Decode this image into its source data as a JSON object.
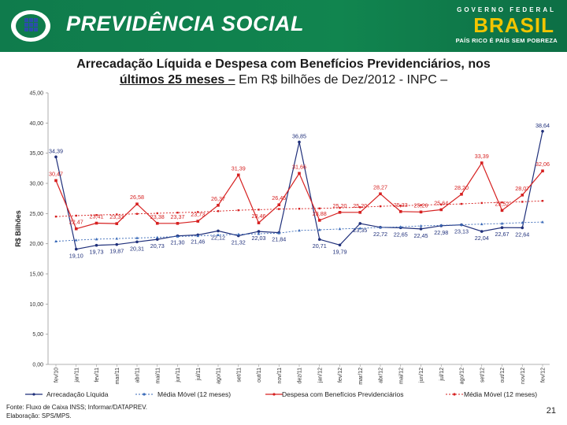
{
  "header": {
    "brand_title": "PREVIDÊNCIA SOCIAL",
    "gov_top": "GOVERNO FEDERAL",
    "gov_brasil": "BRASIL",
    "gov_slogan": "PAÍS RICO É PAÍS SEM POBREZA",
    "bg_color": "#0f7b4c"
  },
  "title": {
    "line1": "Arrecadação Líquida e Despesa com Benefícios Previdenciários, nos",
    "line2_bold": "últimos 25 meses –",
    "line2_rest": " Em R$ bilhões de Dez/2012 - INPC –"
  },
  "footer": {
    "source": "Fonte: Fluxo de Caixa INSS; Informar/DATAPREV.",
    "elaboration": "Elaboração: SPS/MPS."
  },
  "page_number": "21",
  "chart_data": {
    "type": "line",
    "ylabel": "R$ Bilhões",
    "ylim": [
      0,
      45
    ],
    "yticks": [
      "0,00",
      "5,00",
      "10,00",
      "15,00",
      "20,00",
      "25,00",
      "30,00",
      "35,00",
      "40,00",
      "45,00"
    ],
    "categories": [
      "fev/10",
      "jan/11",
      "fev/11",
      "mar/11",
      "abr/11",
      "mai/11",
      "jun/11",
      "jul/11",
      "ago/11",
      "set/11",
      "out/11",
      "nov/11",
      "dez/11",
      "jan/12",
      "fev/12",
      "mar/12",
      "abr/12",
      "mai/12",
      "jun/12",
      "jul/12",
      "ago/12",
      "set/12",
      "out/12",
      "nov/12",
      "fev/12"
    ],
    "series": [
      {
        "name": "Arrecadação Líquida",
        "color": "#1f2f7a",
        "values": [
          34.39,
          19.1,
          19.73,
          19.87,
          20.31,
          20.73,
          21.3,
          21.46,
          22.12,
          21.32,
          22.03,
          21.84,
          36.85,
          20.71,
          19.79,
          23.35,
          22.72,
          22.65,
          22.45,
          22.98,
          23.13,
          22.04,
          22.67,
          22.64,
          38.64
        ],
        "labels": [
          "34,39",
          "19,10",
          "19,73",
          "19,87",
          "20,31",
          "20,73",
          "21,30",
          "21,46",
          "22,12",
          "21,32",
          "22,03",
          "21,84",
          "36,85",
          "20,71",
          "19,79",
          "23,35",
          "22,72",
          "22,65",
          "22,45",
          "22,98",
          "23,13",
          "22,04",
          "22,67",
          "22,64",
          "38,64"
        ]
      },
      {
        "name": "Média Móvel (12 meses)",
        "color": "#3a6ab8",
        "values": [
          20.4,
          20.6,
          20.75,
          20.85,
          20.95,
          21.05,
          21.2,
          21.3,
          21.45,
          21.55,
          21.65,
          21.75,
          22.2,
          22.3,
          22.45,
          22.55,
          22.7,
          22.8,
          22.95,
          23.05,
          23.15,
          23.25,
          23.35,
          23.5,
          23.6
        ]
      },
      {
        "name": "Despesa com Benefícios Previdenciários",
        "color": "#d62020",
        "values": [
          30.47,
          22.47,
          23.41,
          23.33,
          26.58,
          23.38,
          23.37,
          23.73,
          26.37,
          31.39,
          23.46,
          26.45,
          31.66,
          23.88,
          25.2,
          25.2,
          28.27,
          25.33,
          25.26,
          25.64,
          28.2,
          33.39,
          25.52,
          28.07,
          32.06
        ],
        "labels": [
          "30,47",
          "22,47",
          "23,41",
          "23,33",
          "26,58",
          "23,38",
          "23,37",
          "23,73",
          "26,37",
          "31,39",
          "23,46",
          "26,45",
          "31,66",
          "23,88",
          "25,20",
          "25,20",
          "28,27",
          "25,33",
          "25,26",
          "25,64",
          "28,20",
          "33,39",
          "25,52",
          "28,07",
          "32,06"
        ]
      },
      {
        "name": "Média Móvel (12 meses)",
        "color": "#d62020",
        "values": [
          24.5,
          24.65,
          24.75,
          24.85,
          24.95,
          25.05,
          25.15,
          25.25,
          25.4,
          25.55,
          25.65,
          25.75,
          25.8,
          25.85,
          25.95,
          26.05,
          26.2,
          26.3,
          26.4,
          26.5,
          26.6,
          26.75,
          26.85,
          26.95,
          27.1
        ]
      }
    ],
    "legend_position": "bottom",
    "grid": false
  }
}
